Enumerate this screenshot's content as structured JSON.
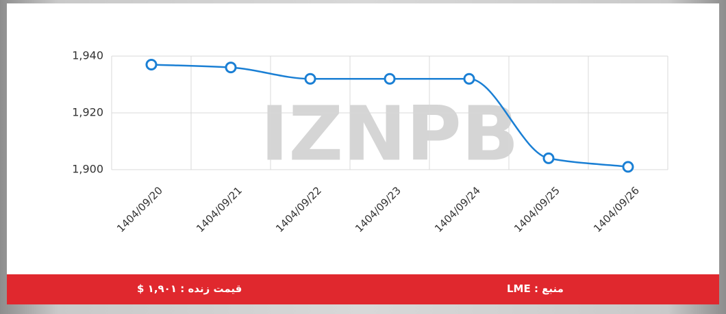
{
  "chart_data": {
    "type": "line",
    "categories": [
      "1404/09/20",
      "1404/09/21",
      "1404/09/22",
      "1404/09/23",
      "1404/09/24",
      "1404/09/25",
      "1404/09/26"
    ],
    "values": [
      1937,
      1936,
      1932,
      1932,
      1932,
      1904,
      1901
    ],
    "color": "#1a7fd4",
    "ylim": [
      1900,
      1940
    ],
    "yticks": [
      {
        "value": 1900,
        "label": "1,900"
      },
      {
        "value": 1920,
        "label": "1,920"
      },
      {
        "value": 1940,
        "label": "1,940"
      }
    ],
    "grid": true,
    "watermark": "IZNPB"
  },
  "footer": {
    "live_price": "قیمت زنده : ۱,۹۰۱ $",
    "source": "منبع : LME"
  }
}
